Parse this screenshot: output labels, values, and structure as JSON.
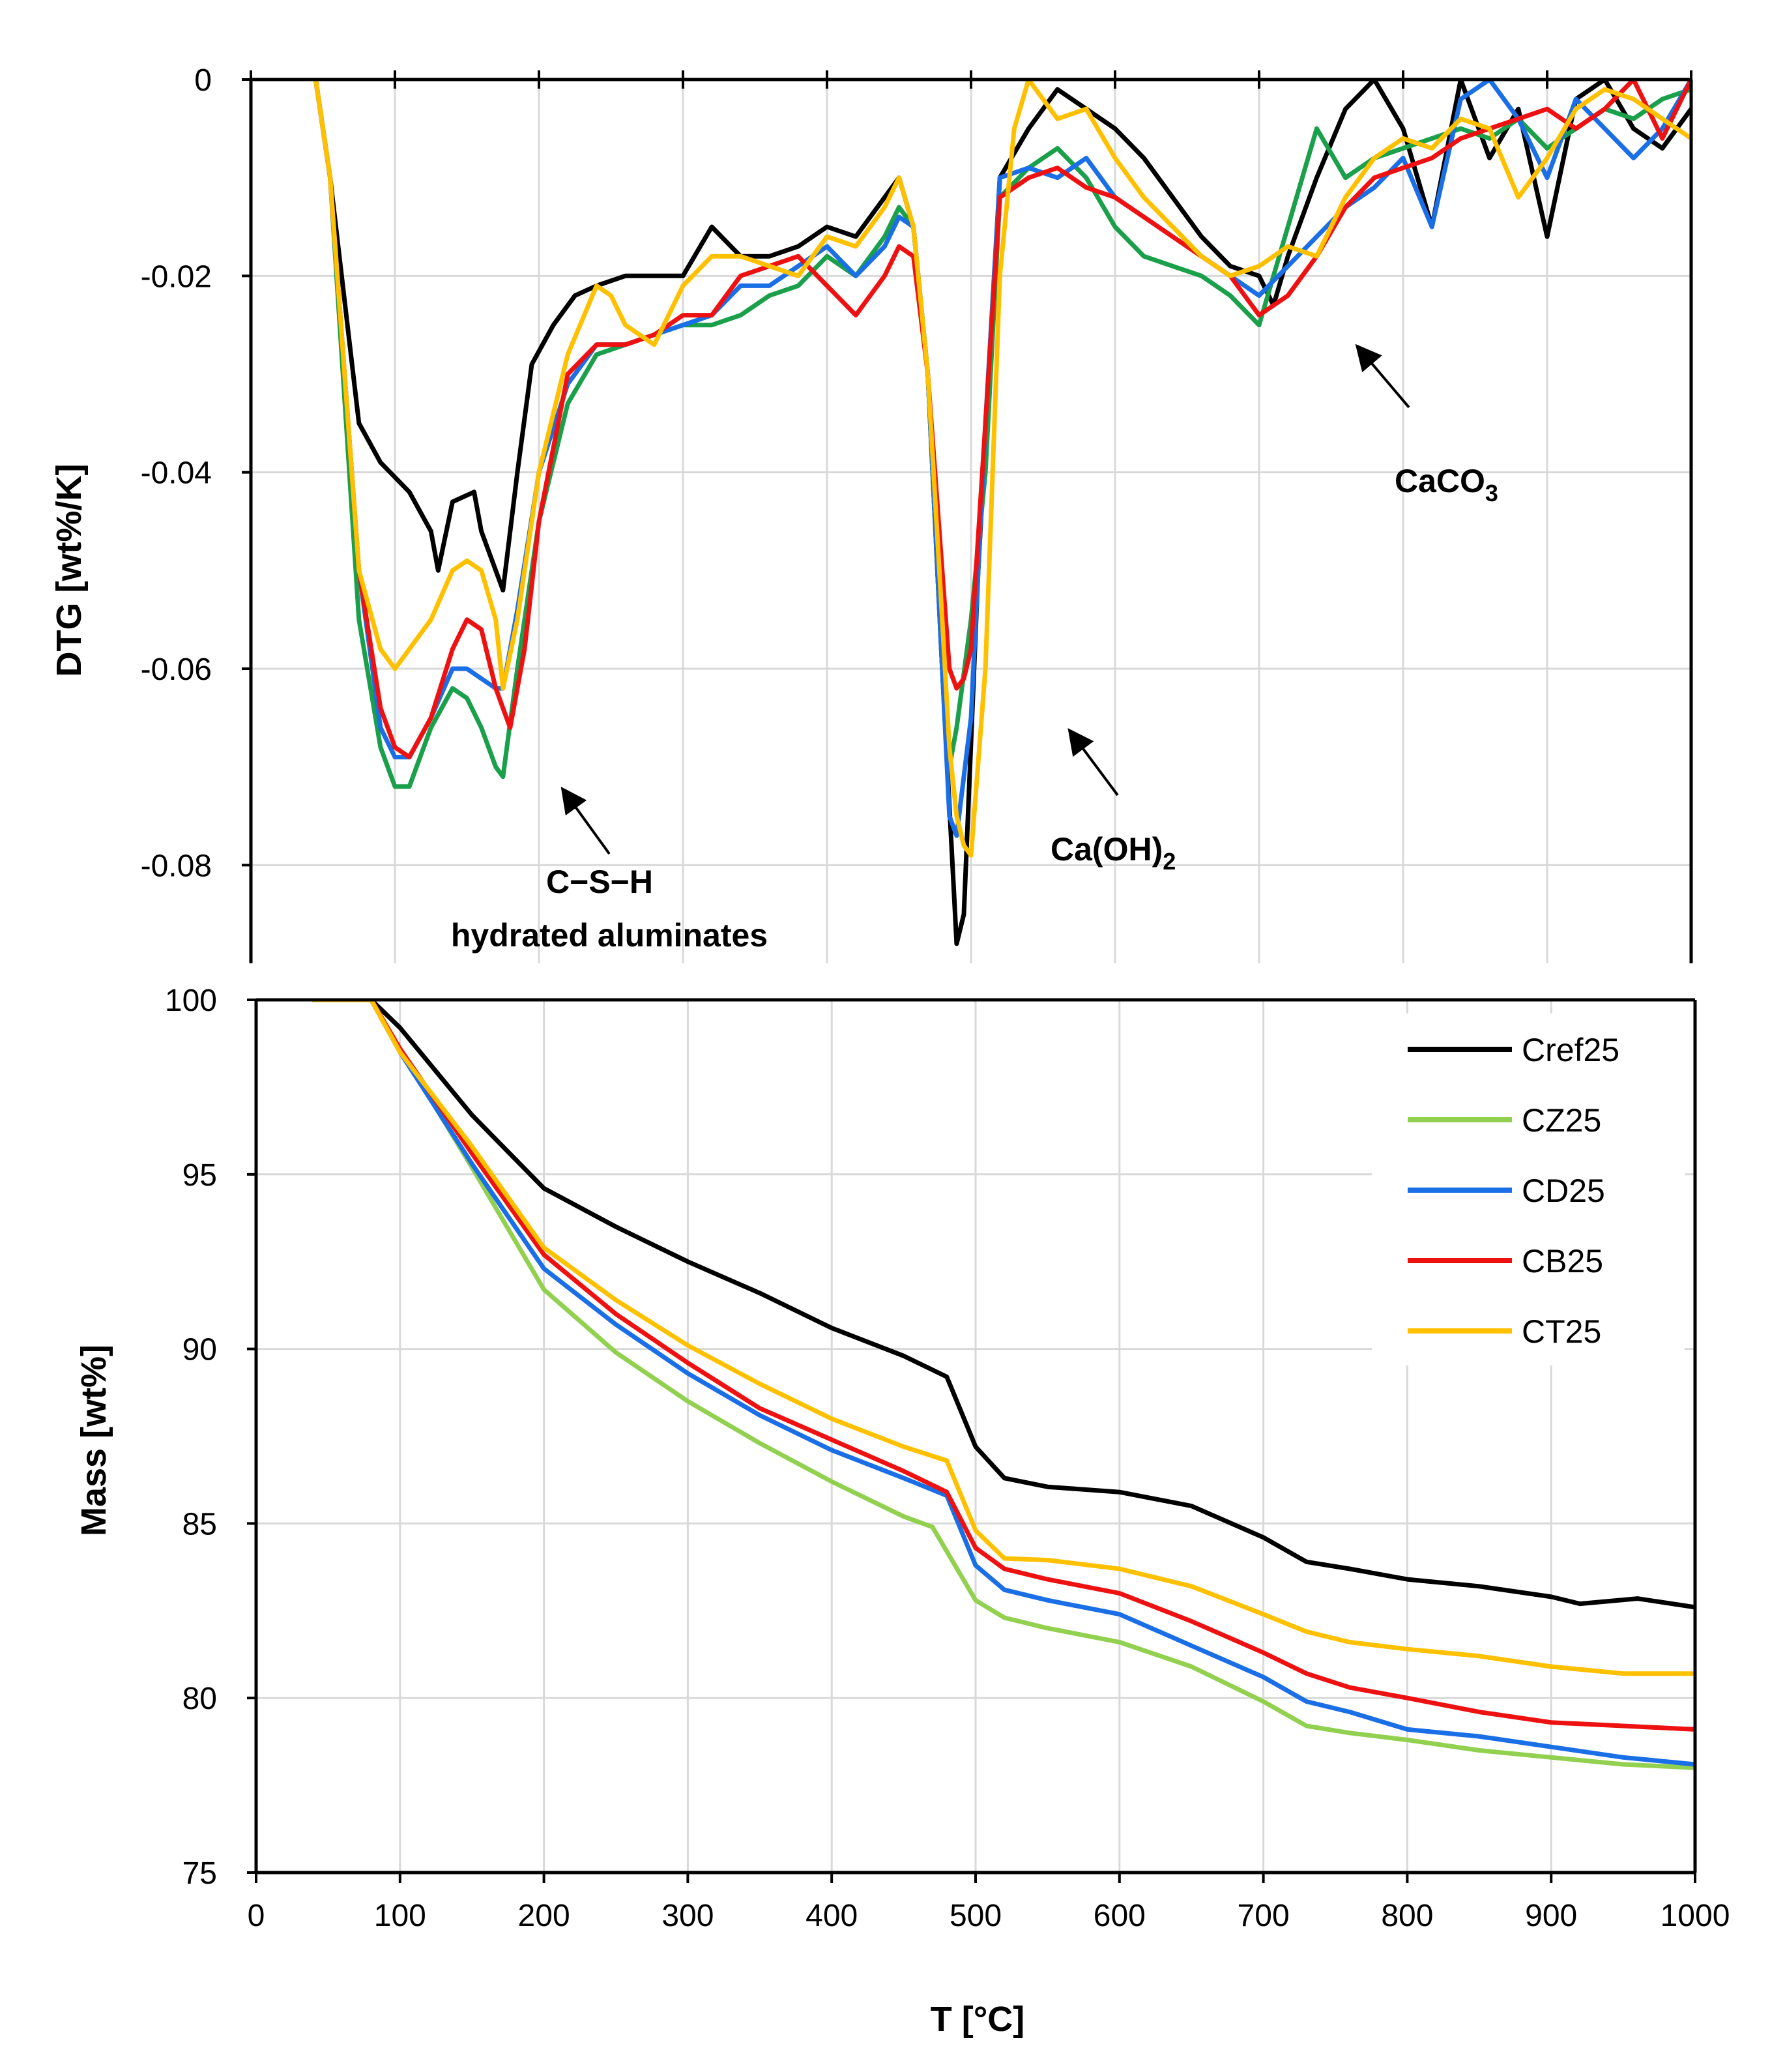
{
  "chart_data": [
    {
      "id": "dtg",
      "type": "line",
      "ylabel": "DTG [wt%/K]",
      "xlabel": "",
      "xlim": [
        0,
        1000
      ],
      "ylim": [
        -0.09,
        0
      ],
      "x_ticks": [
        0,
        100,
        200,
        300,
        400,
        500,
        600,
        700,
        800,
        900,
        1000
      ],
      "y_ticks": [
        0,
        -0.02,
        -0.04,
        -0.06,
        -0.08
      ],
      "y_tick_labels": [
        "0",
        "-0.02",
        "-0.04",
        "-0.06",
        "-0.08"
      ],
      "grid": true,
      "annotations": [
        {
          "text_line1": "C−S−H",
          "text_line2": "hydrated aluminates",
          "arrow_to": [
            215,
            -0.073
          ]
        },
        {
          "text": "Ca(OH)",
          "subscript": "2",
          "arrow_to": [
            565,
            -0.067
          ]
        },
        {
          "text": "CaCO",
          "subscript": "3",
          "arrow_to": [
            770,
            -0.026
          ]
        }
      ],
      "series": [
        {
          "name": "Cref25",
          "color": "#000000",
          "x": [
            45,
            55,
            75,
            90,
            110,
            125,
            130,
            140,
            155,
            160,
            175,
            185,
            195,
            210,
            225,
            240,
            260,
            280,
            300,
            320,
            340,
            360,
            380,
            400,
            420,
            440,
            450,
            460,
            470,
            480,
            490,
            495,
            505,
            520,
            540,
            560,
            580,
            600,
            620,
            640,
            660,
            680,
            700,
            710,
            720,
            740,
            760,
            780,
            800,
            820,
            840,
            860,
            880,
            900,
            920,
            940,
            960,
            980,
            1000
          ],
          "y": [
            0,
            -0.01,
            -0.035,
            -0.039,
            -0.042,
            -0.046,
            -0.05,
            -0.043,
            -0.042,
            -0.046,
            -0.052,
            -0.04,
            -0.029,
            -0.025,
            -0.022,
            -0.021,
            -0.02,
            -0.02,
            -0.02,
            -0.015,
            -0.018,
            -0.018,
            -0.017,
            -0.015,
            -0.016,
            -0.012,
            -0.01,
            -0.015,
            -0.03,
            -0.06,
            -0.088,
            -0.085,
            -0.05,
            -0.01,
            -0.005,
            -0.001,
            -0.003,
            -0.005,
            -0.008,
            -0.012,
            -0.016,
            -0.019,
            -0.02,
            -0.023,
            -0.018,
            -0.01,
            -0.003,
            0,
            -0.005,
            -0.015,
            0,
            -0.008,
            -0.003,
            -0.016,
            -0.002,
            0,
            -0.005,
            -0.007,
            -0.003
          ]
        },
        {
          "name": "CZ25",
          "color": "#1a9f4a",
          "x": [
            45,
            55,
            75,
            90,
            100,
            110,
            125,
            140,
            150,
            160,
            170,
            175,
            185,
            200,
            220,
            240,
            260,
            280,
            300,
            320,
            340,
            360,
            380,
            400,
            420,
            440,
            450,
            460,
            470,
            480,
            485,
            490,
            500,
            510,
            520,
            540,
            560,
            580,
            600,
            620,
            640,
            660,
            680,
            700,
            720,
            740,
            760,
            780,
            800,
            820,
            840,
            860,
            880,
            900,
            920,
            940,
            960,
            980,
            1000
          ],
          "y": [
            0,
            -0.01,
            -0.055,
            -0.068,
            -0.072,
            -0.072,
            -0.066,
            -0.062,
            -0.063,
            -0.066,
            -0.07,
            -0.071,
            -0.06,
            -0.045,
            -0.033,
            -0.028,
            -0.027,
            -0.026,
            -0.025,
            -0.025,
            -0.024,
            -0.022,
            -0.021,
            -0.018,
            -0.02,
            -0.016,
            -0.013,
            -0.015,
            -0.03,
            -0.06,
            -0.07,
            -0.066,
            -0.055,
            -0.04,
            -0.012,
            -0.009,
            -0.007,
            -0.01,
            -0.015,
            -0.018,
            -0.019,
            -0.02,
            -0.022,
            -0.025,
            -0.015,
            -0.005,
            -0.01,
            -0.008,
            -0.007,
            -0.006,
            -0.005,
            -0.006,
            -0.004,
            -0.007,
            -0.005,
            -0.003,
            -0.004,
            -0.002,
            -0.001
          ]
        },
        {
          "name": "CD25",
          "color": "#1a6ee6",
          "x": [
            45,
            55,
            75,
            90,
            100,
            110,
            125,
            140,
            150,
            160,
            170,
            175,
            185,
            200,
            220,
            240,
            260,
            280,
            300,
            320,
            340,
            360,
            380,
            400,
            420,
            440,
            450,
            460,
            470,
            480,
            485,
            490,
            500,
            510,
            520,
            540,
            560,
            580,
            600,
            620,
            640,
            660,
            680,
            700,
            720,
            740,
            760,
            780,
            800,
            820,
            840,
            860,
            880,
            900,
            920,
            940,
            960,
            980,
            1000
          ],
          "y": [
            0,
            -0.01,
            -0.05,
            -0.066,
            -0.069,
            -0.069,
            -0.065,
            -0.06,
            -0.06,
            -0.061,
            -0.062,
            -0.062,
            -0.054,
            -0.04,
            -0.031,
            -0.027,
            -0.027,
            -0.026,
            -0.025,
            -0.024,
            -0.021,
            -0.021,
            -0.019,
            -0.017,
            -0.02,
            -0.017,
            -0.014,
            -0.015,
            -0.03,
            -0.06,
            -0.075,
            -0.077,
            -0.065,
            -0.035,
            -0.01,
            -0.009,
            -0.01,
            -0.008,
            -0.012,
            -0.014,
            -0.016,
            -0.018,
            -0.02,
            -0.022,
            -0.019,
            -0.016,
            -0.013,
            -0.011,
            -0.008,
            -0.015,
            -0.002,
            0,
            -0.004,
            -0.01,
            -0.002,
            -0.005,
            -0.008,
            -0.005,
            0
          ]
        },
        {
          "name": "CB25",
          "color": "#ee1111",
          "x": [
            45,
            55,
            75,
            90,
            100,
            110,
            125,
            140,
            150,
            160,
            170,
            180,
            190,
            200,
            220,
            240,
            260,
            280,
            300,
            320,
            340,
            360,
            380,
            400,
            420,
            440,
            450,
            460,
            470,
            480,
            485,
            490,
            495,
            500,
            510,
            520,
            540,
            560,
            580,
            600,
            620,
            640,
            660,
            680,
            700,
            720,
            740,
            760,
            780,
            800,
            820,
            840,
            860,
            880,
            900,
            920,
            940,
            960,
            980,
            1000
          ],
          "y": [
            0,
            -0.01,
            -0.05,
            -0.064,
            -0.068,
            -0.069,
            -0.065,
            -0.058,
            -0.055,
            -0.056,
            -0.062,
            -0.066,
            -0.058,
            -0.045,
            -0.03,
            -0.027,
            -0.027,
            -0.026,
            -0.024,
            -0.024,
            -0.02,
            -0.019,
            -0.018,
            -0.021,
            -0.024,
            -0.02,
            -0.017,
            -0.018,
            -0.03,
            -0.05,
            -0.06,
            -0.062,
            -0.061,
            -0.058,
            -0.035,
            -0.012,
            -0.01,
            -0.009,
            -0.011,
            -0.012,
            -0.014,
            -0.016,
            -0.018,
            -0.02,
            -0.024,
            -0.022,
            -0.018,
            -0.013,
            -0.01,
            -0.009,
            -0.008,
            -0.006,
            -0.005,
            -0.004,
            -0.003,
            -0.005,
            -0.003,
            0,
            -0.006,
            0
          ]
        },
        {
          "name": "CT25",
          "color": "#ffc000",
          "x": [
            45,
            55,
            75,
            90,
            100,
            110,
            125,
            140,
            150,
            160,
            170,
            175,
            185,
            200,
            220,
            240,
            250,
            260,
            280,
            300,
            320,
            340,
            360,
            380,
            400,
            420,
            440,
            450,
            460,
            470,
            480,
            485,
            490,
            495,
            500,
            510,
            520,
            530,
            540,
            560,
            580,
            600,
            620,
            640,
            660,
            680,
            700,
            720,
            740,
            760,
            780,
            800,
            820,
            840,
            860,
            880,
            900,
            920,
            940,
            960,
            980,
            1000
          ],
          "y": [
            0,
            -0.01,
            -0.05,
            -0.058,
            -0.06,
            -0.058,
            -0.055,
            -0.05,
            -0.049,
            -0.05,
            -0.055,
            -0.062,
            -0.055,
            -0.04,
            -0.028,
            -0.021,
            -0.022,
            -0.025,
            -0.027,
            -0.021,
            -0.018,
            -0.018,
            -0.019,
            -0.02,
            -0.016,
            -0.017,
            -0.013,
            -0.01,
            -0.015,
            -0.03,
            -0.055,
            -0.068,
            -0.075,
            -0.078,
            -0.079,
            -0.06,
            -0.02,
            -0.005,
            0,
            -0.004,
            -0.003,
            -0.008,
            -0.012,
            -0.015,
            -0.018,
            -0.02,
            -0.019,
            -0.017,
            -0.018,
            -0.012,
            -0.008,
            -0.006,
            -0.007,
            -0.004,
            -0.005,
            -0.012,
            -0.008,
            -0.003,
            -0.001,
            -0.002,
            -0.004,
            -0.006
          ]
        }
      ]
    },
    {
      "id": "tg",
      "type": "line",
      "ylabel": "Mass [wt%]",
      "xlabel": "T [°C]",
      "xlim": [
        0,
        1000
      ],
      "ylim": [
        75,
        100
      ],
      "x_ticks": [
        0,
        100,
        200,
        300,
        400,
        500,
        600,
        700,
        800,
        900,
        1000
      ],
      "x_tick_labels": [
        "0",
        "100",
        "200",
        "300",
        "400",
        "500",
        "600",
        "700",
        "800",
        "900",
        "1000"
      ],
      "y_ticks": [
        75,
        80,
        85,
        90,
        95,
        100
      ],
      "y_tick_labels": [
        "75",
        "80",
        "85",
        "90",
        "95",
        "100"
      ],
      "grid": true,
      "legend": "top-right",
      "series": [
        {
          "name": "Cref25",
          "color": "#000000",
          "x": [
            40,
            80,
            100,
            150,
            200,
            250,
            300,
            350,
            400,
            450,
            480,
            500,
            520,
            550,
            600,
            650,
            700,
            730,
            760,
            800,
            850,
            900,
            920,
            960,
            1000
          ],
          "y": [
            100,
            100,
            99.2,
            96.7,
            94.6,
            93.5,
            92.5,
            91.6,
            90.6,
            89.8,
            89.2,
            87.2,
            86.3,
            86.05,
            85.9,
            85.5,
            84.6,
            83.9,
            83.7,
            83.4,
            83.2,
            82.9,
            82.7,
            82.85,
            82.6
          ]
        },
        {
          "name": "CZ25",
          "color": "#92d050",
          "x": [
            40,
            80,
            100,
            150,
            200,
            250,
            300,
            350,
            400,
            450,
            470,
            480,
            500,
            520,
            550,
            600,
            650,
            700,
            730,
            760,
            800,
            850,
            900,
            950,
            1000
          ],
          "y": [
            100,
            100,
            98.6,
            95.2,
            91.7,
            89.9,
            88.5,
            87.3,
            86.2,
            85.2,
            84.9,
            84.2,
            82.8,
            82.3,
            82.0,
            81.6,
            80.9,
            79.9,
            79.2,
            79.0,
            78.8,
            78.5,
            78.3,
            78.1,
            78.0
          ]
        },
        {
          "name": "CD25",
          "color": "#1a6ee6",
          "x": [
            40,
            80,
            100,
            150,
            200,
            250,
            300,
            350,
            400,
            450,
            480,
            500,
            520,
            550,
            600,
            650,
            700,
            730,
            760,
            800,
            850,
            900,
            950,
            1000
          ],
          "y": [
            100,
            100,
            98.5,
            95.3,
            92.3,
            90.7,
            89.3,
            88.1,
            87.1,
            86.3,
            85.8,
            83.8,
            83.1,
            82.8,
            82.4,
            81.5,
            80.6,
            79.9,
            79.6,
            79.1,
            78.9,
            78.6,
            78.3,
            78.1
          ]
        },
        {
          "name": "CB25",
          "color": "#ee1111",
          "x": [
            40,
            80,
            100,
            150,
            200,
            250,
            300,
            350,
            400,
            450,
            480,
            500,
            520,
            550,
            600,
            650,
            700,
            730,
            760,
            800,
            850,
            900,
            950,
            1000
          ],
          "y": [
            100,
            100,
            98.6,
            95.6,
            92.7,
            91.0,
            89.6,
            88.3,
            87.4,
            86.5,
            85.9,
            84.3,
            83.7,
            83.4,
            83.0,
            82.2,
            81.3,
            80.7,
            80.3,
            80.0,
            79.6,
            79.3,
            79.2,
            79.1
          ]
        },
        {
          "name": "CT25",
          "color": "#ffc000",
          "x": [
            40,
            80,
            100,
            150,
            200,
            250,
            300,
            350,
            400,
            450,
            480,
            500,
            520,
            550,
            600,
            650,
            700,
            730,
            760,
            800,
            850,
            900,
            950,
            1000
          ],
          "y": [
            100,
            100,
            98.5,
            95.8,
            92.9,
            91.4,
            90.1,
            89.0,
            88.0,
            87.2,
            86.8,
            84.8,
            84.0,
            83.95,
            83.7,
            83.2,
            82.4,
            81.9,
            81.6,
            81.4,
            81.2,
            80.9,
            80.7,
            80.7
          ]
        }
      ]
    }
  ]
}
